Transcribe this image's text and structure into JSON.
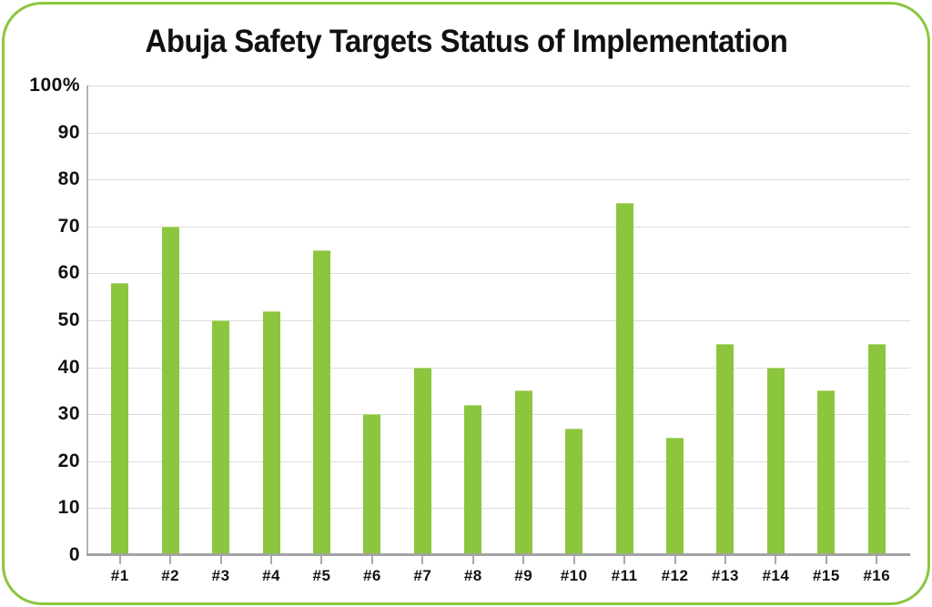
{
  "chart_data": {
    "type": "bar",
    "title": "Abuja Safety Targets Status of Implementation",
    "categories": [
      "#1",
      "#2",
      "#3",
      "#4",
      "#5",
      "#6",
      "#7",
      "#8",
      "#9",
      "#10",
      "#11",
      "#12",
      "#13",
      "#14",
      "#15",
      "#16"
    ],
    "values": [
      58,
      70,
      50,
      52,
      65,
      30,
      40,
      32,
      35,
      27,
      75,
      25,
      45,
      40,
      35,
      45
    ],
    "unit": "%",
    "xlabel": "",
    "ylabel": "",
    "ylim": [
      0,
      100
    ],
    "ytick_interval": 10,
    "yticks": [
      "100%",
      "90",
      "80",
      "70",
      "60",
      "50",
      "40",
      "30",
      "20",
      "10",
      "0"
    ],
    "grid": "horizontal",
    "legend_position": "none",
    "bar_color": "#8CC63E"
  },
  "colors": {
    "accent_green": "#8CC63E",
    "gridline": "#DCDCDC",
    "axis": "#A3A3A3",
    "text": "#111111",
    "background": "#FFFFFF"
  }
}
